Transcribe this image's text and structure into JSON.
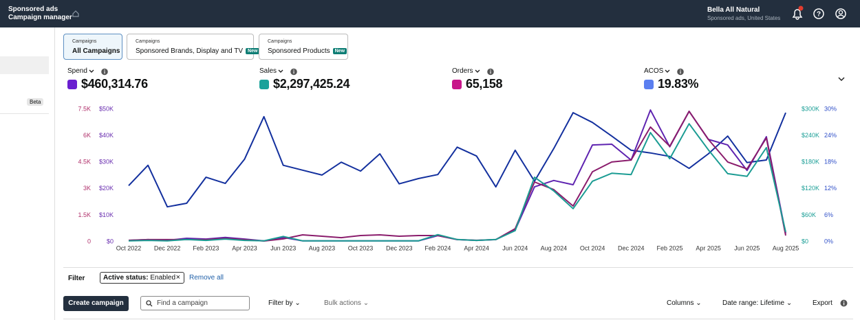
{
  "header": {
    "brand": "Sponsored ads",
    "product": "Campaign manager",
    "account": "Bella All Natural",
    "account_detail": "Sponsored ads, United States"
  },
  "sidebar": {
    "badge": "Beta"
  },
  "tabs": [
    {
      "kicker": "Campaigns",
      "title": "All Campaigns"
    },
    {
      "kicker": "Campaigns",
      "title": "Sponsored Brands, Display and TV",
      "badge": "New"
    },
    {
      "kicker": "Campaigns",
      "title": "Sponsored Products",
      "badge": "New"
    }
  ],
  "chart_data": {
    "type": "line",
    "categories": [
      "Oct 2022",
      null,
      "Dec 2022",
      null,
      "Feb 2023",
      null,
      "Apr 2023",
      null,
      "Jun 2023",
      null,
      "Aug 2023",
      null,
      "Oct 2023",
      null,
      "Dec 2023",
      null,
      "Feb 2024",
      null,
      "Apr 2024",
      null,
      "Jun 2024",
      null,
      "Aug 2024",
      null,
      "Oct 2024",
      null,
      "Dec 2024",
      null,
      "Feb 2025",
      null,
      "Apr 2025",
      null,
      "Jun 2025",
      null,
      "Aug 2025"
    ],
    "axes": [
      {
        "color": "#b0306b",
        "lim": [
          0,
          7500
        ],
        "ticks": [
          0,
          {
            "value": 1500,
            "label": "1.5K"
          },
          {
            "value": 3000,
            "label": "3K"
          },
          {
            "value": 4500,
            "label": "4.5K"
          },
          {
            "value": 6000,
            "label": "6K"
          },
          {
            "value": 7500,
            "label": "7.5K"
          }
        ]
      },
      {
        "color": "#6a2fb0",
        "lim": [
          0,
          50000
        ],
        "ticks": [
          {
            "value": 0,
            "label": "$0"
          },
          {
            "value": 10000,
            "label": "$10K"
          },
          {
            "value": 20000,
            "label": "$20K"
          },
          {
            "value": 30000,
            "label": "$30K"
          },
          {
            "value": 40000,
            "label": "$40K"
          },
          {
            "value": 50000,
            "label": "$50K"
          }
        ]
      },
      {
        "color": "#1a9e96",
        "lim": [
          0,
          300000
        ],
        "ticks": [
          {
            "value": 0,
            "label": "$0"
          },
          {
            "value": 60000,
            "label": "$60K"
          },
          {
            "value": 120000,
            "label": "$120K"
          },
          {
            "value": 180000,
            "label": "$180K"
          },
          {
            "value": 240000,
            "label": "$240K"
          },
          {
            "value": 300000,
            "label": "$300K"
          }
        ]
      },
      {
        "color": "#2f4fc8",
        "lim": [
          0,
          30
        ],
        "ticks": [
          {
            "value": 0,
            "label": "0%"
          },
          {
            "value": 6,
            "label": "6%"
          },
          {
            "value": 12,
            "label": "12%"
          },
          {
            "value": 18,
            "label": "18%"
          },
          {
            "value": 24,
            "label": "24%"
          },
          {
            "value": 30,
            "label": "30%"
          }
        ]
      }
    ],
    "series": [
      {
        "name": "Spend",
        "total": "$460,314.76",
        "swatch": "#6a1fd0",
        "color": "#5e23b0",
        "axis": 1,
        "values": [
          500,
          800,
          500,
          1300,
          1000,
          1600,
          1000,
          300,
          1600,
          300,
          300,
          300,
          300,
          300,
          300,
          300,
          2300,
          800,
          500,
          800,
          4400,
          20700,
          23100,
          21500,
          36500,
          36800,
          30800,
          49700,
          35800,
          49200,
          38600,
          36500,
          26900,
          39600,
          3100
        ]
      },
      {
        "name": "Sales",
        "total": "$2,297,425.24",
        "swatch": "#1aa29a",
        "color": "#1b9c93",
        "axis": 2,
        "values": [
          2000,
          3000,
          2000,
          5000,
          3000,
          6000,
          3000,
          2000,
          12000,
          2000,
          2000,
          2000,
          2000,
          2000,
          2000,
          2000,
          16000,
          5000,
          3000,
          5000,
          25000,
          146000,
          115000,
          75000,
          137000,
          155000,
          152000,
          247000,
          188000,
          267000,
          208000,
          154000,
          148000,
          213000,
          22000
        ]
      },
      {
        "name": "Orders",
        "total": "65,158",
        "swatch": "#c8168a",
        "color": "#8a1c6c",
        "axis": 0,
        "values": [
          80,
          120,
          120,
          120,
          120,
          190,
          120,
          40,
          160,
          390,
          310,
          230,
          350,
          390,
          310,
          350,
          350,
          120,
          80,
          120,
          740,
          3380,
          2950,
          2020,
          3960,
          4510,
          4620,
          6490,
          5400,
          7380,
          5790,
          4510,
          4120,
          5870,
          350
        ]
      },
      {
        "name": "ACOS",
        "total": "19.83%",
        "swatch": "#5b7ff0",
        "color": "#13309e",
        "axis": 3,
        "values": [
          12.7,
          17.3,
          7.9,
          8.7,
          14.6,
          13.2,
          18.7,
          28.3,
          17.3,
          16.2,
          15.1,
          18.0,
          16.0,
          19.9,
          13.1,
          14.3,
          15.2,
          21.4,
          19.4,
          12.4,
          20.7,
          13.7,
          21.1,
          29.2,
          27.0,
          23.9,
          20.7,
          20.1,
          19.3,
          16.6,
          19.9,
          23.9,
          17.9,
          18.5,
          29.2
        ]
      }
    ]
  },
  "filter": {
    "label": "Filter",
    "chip_key": "Active status:",
    "chip_value": "Enabled",
    "remove": "Remove all"
  },
  "toolbar": {
    "create": "Create campaign",
    "search": "Find a campaign",
    "filter_by": "Filter by",
    "bulk": "Bulk actions",
    "columns": "Columns",
    "date_range": "Date range: Lifetime",
    "export": "Export"
  }
}
